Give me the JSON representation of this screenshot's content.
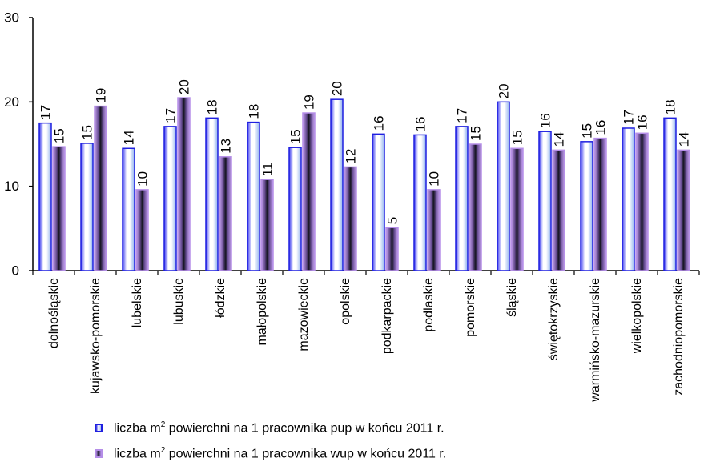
{
  "chart_data": {
    "type": "bar",
    "categories": [
      "dolnośląskie",
      "kujawsko-pomorskie",
      "lubelskie",
      "lubuskie",
      "łódzkie",
      "małopolskie",
      "mazowieckie",
      "opolskie",
      "podkarpackie",
      "podlaskie",
      "pomorskie",
      "śląskie",
      "świętokrzyskie",
      "warmińsko-mazurskie",
      "wielkopolskie",
      "zachodniopomorskie"
    ],
    "series": [
      {
        "name_parts": [
          "liczba m",
          "2",
          " powierchni na 1 pracownika pup w końcu 2011 r."
        ],
        "values": [
          17.5,
          15.1,
          14.5,
          17.1,
          18.1,
          17.6,
          14.6,
          20.3,
          16.2,
          16.1,
          17.1,
          20.0,
          16.5,
          15.3,
          16.9,
          18.1
        ],
        "labels": [
          "17",
          "15",
          "14",
          "17",
          "18",
          "18",
          "15",
          "20",
          "16",
          "16",
          "17",
          "20",
          "16",
          "15",
          "17",
          "18"
        ]
      },
      {
        "name_parts": [
          "liczba m",
          "2",
          " powierchni na 1 pracownika wup w końcu 2011 r."
        ],
        "values": [
          14.7,
          19.5,
          9.6,
          20.5,
          13.5,
          10.8,
          18.7,
          12.3,
          5.1,
          9.6,
          15.0,
          14.5,
          14.3,
          15.7,
          16.3,
          14.3
        ],
        "labels": [
          "15",
          "19",
          "10",
          "20",
          "13",
          "11",
          "19",
          "12",
          "5",
          "10",
          "15",
          "15",
          "14",
          "16",
          "16",
          "14"
        ]
      }
    ],
    "yticks": [
      "0",
      "10",
      "20",
      "30"
    ],
    "ylim": [
      0,
      30
    ],
    "grid": false,
    "legend_position": "bottom"
  },
  "colors": {
    "pup_border": "#1f1fe0",
    "pup_edge": "#9fbcf0",
    "wup_border": "#b58ee8",
    "wup_core": "#1a1a2a"
  }
}
